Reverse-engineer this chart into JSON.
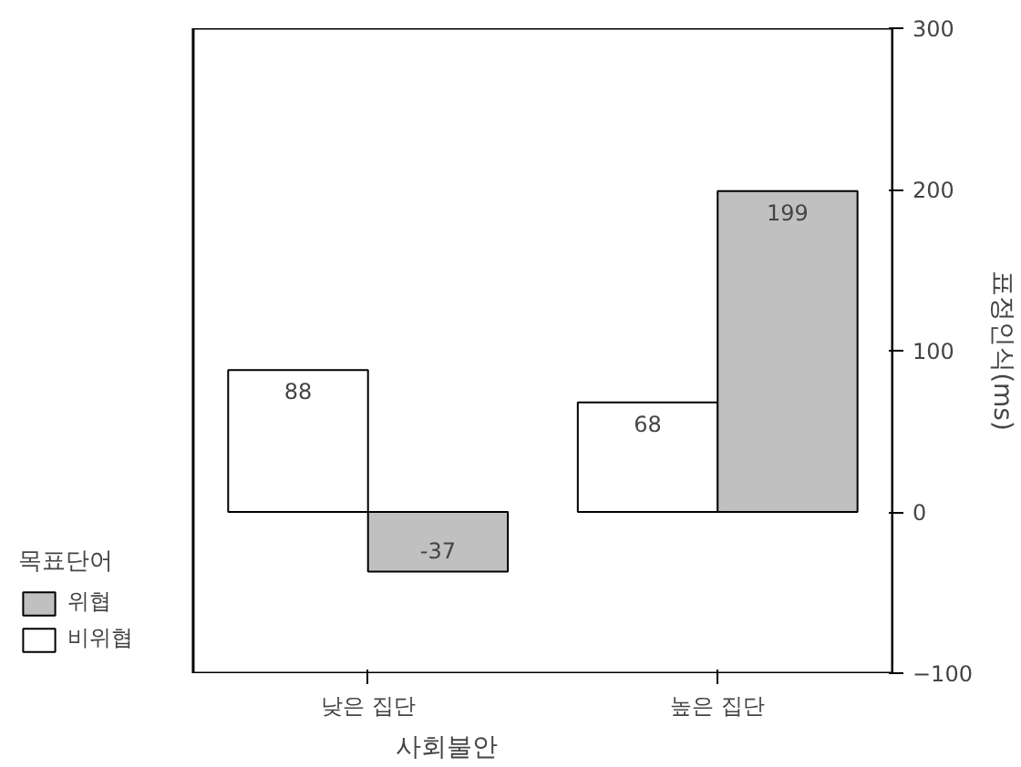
{
  "chart_data": {
    "type": "bar",
    "xlabel": "사회불안",
    "ylabel": "표정인식(ms)",
    "legend_title": "목표단어",
    "categories": [
      "낮은 집단",
      "높은 집단"
    ],
    "series": [
      {
        "name": "비위협",
        "color": "#ffffff",
        "values": [
          88,
          68
        ]
      },
      {
        "name": "위협",
        "color": "#c0c0c0",
        "values": [
          -37,
          199
        ]
      }
    ],
    "ylim": [
      -100,
      300
    ],
    "yticks": [
      -100,
      0,
      100,
      200,
      300
    ],
    "data_labels": true,
    "grid": false,
    "legend": "left"
  }
}
